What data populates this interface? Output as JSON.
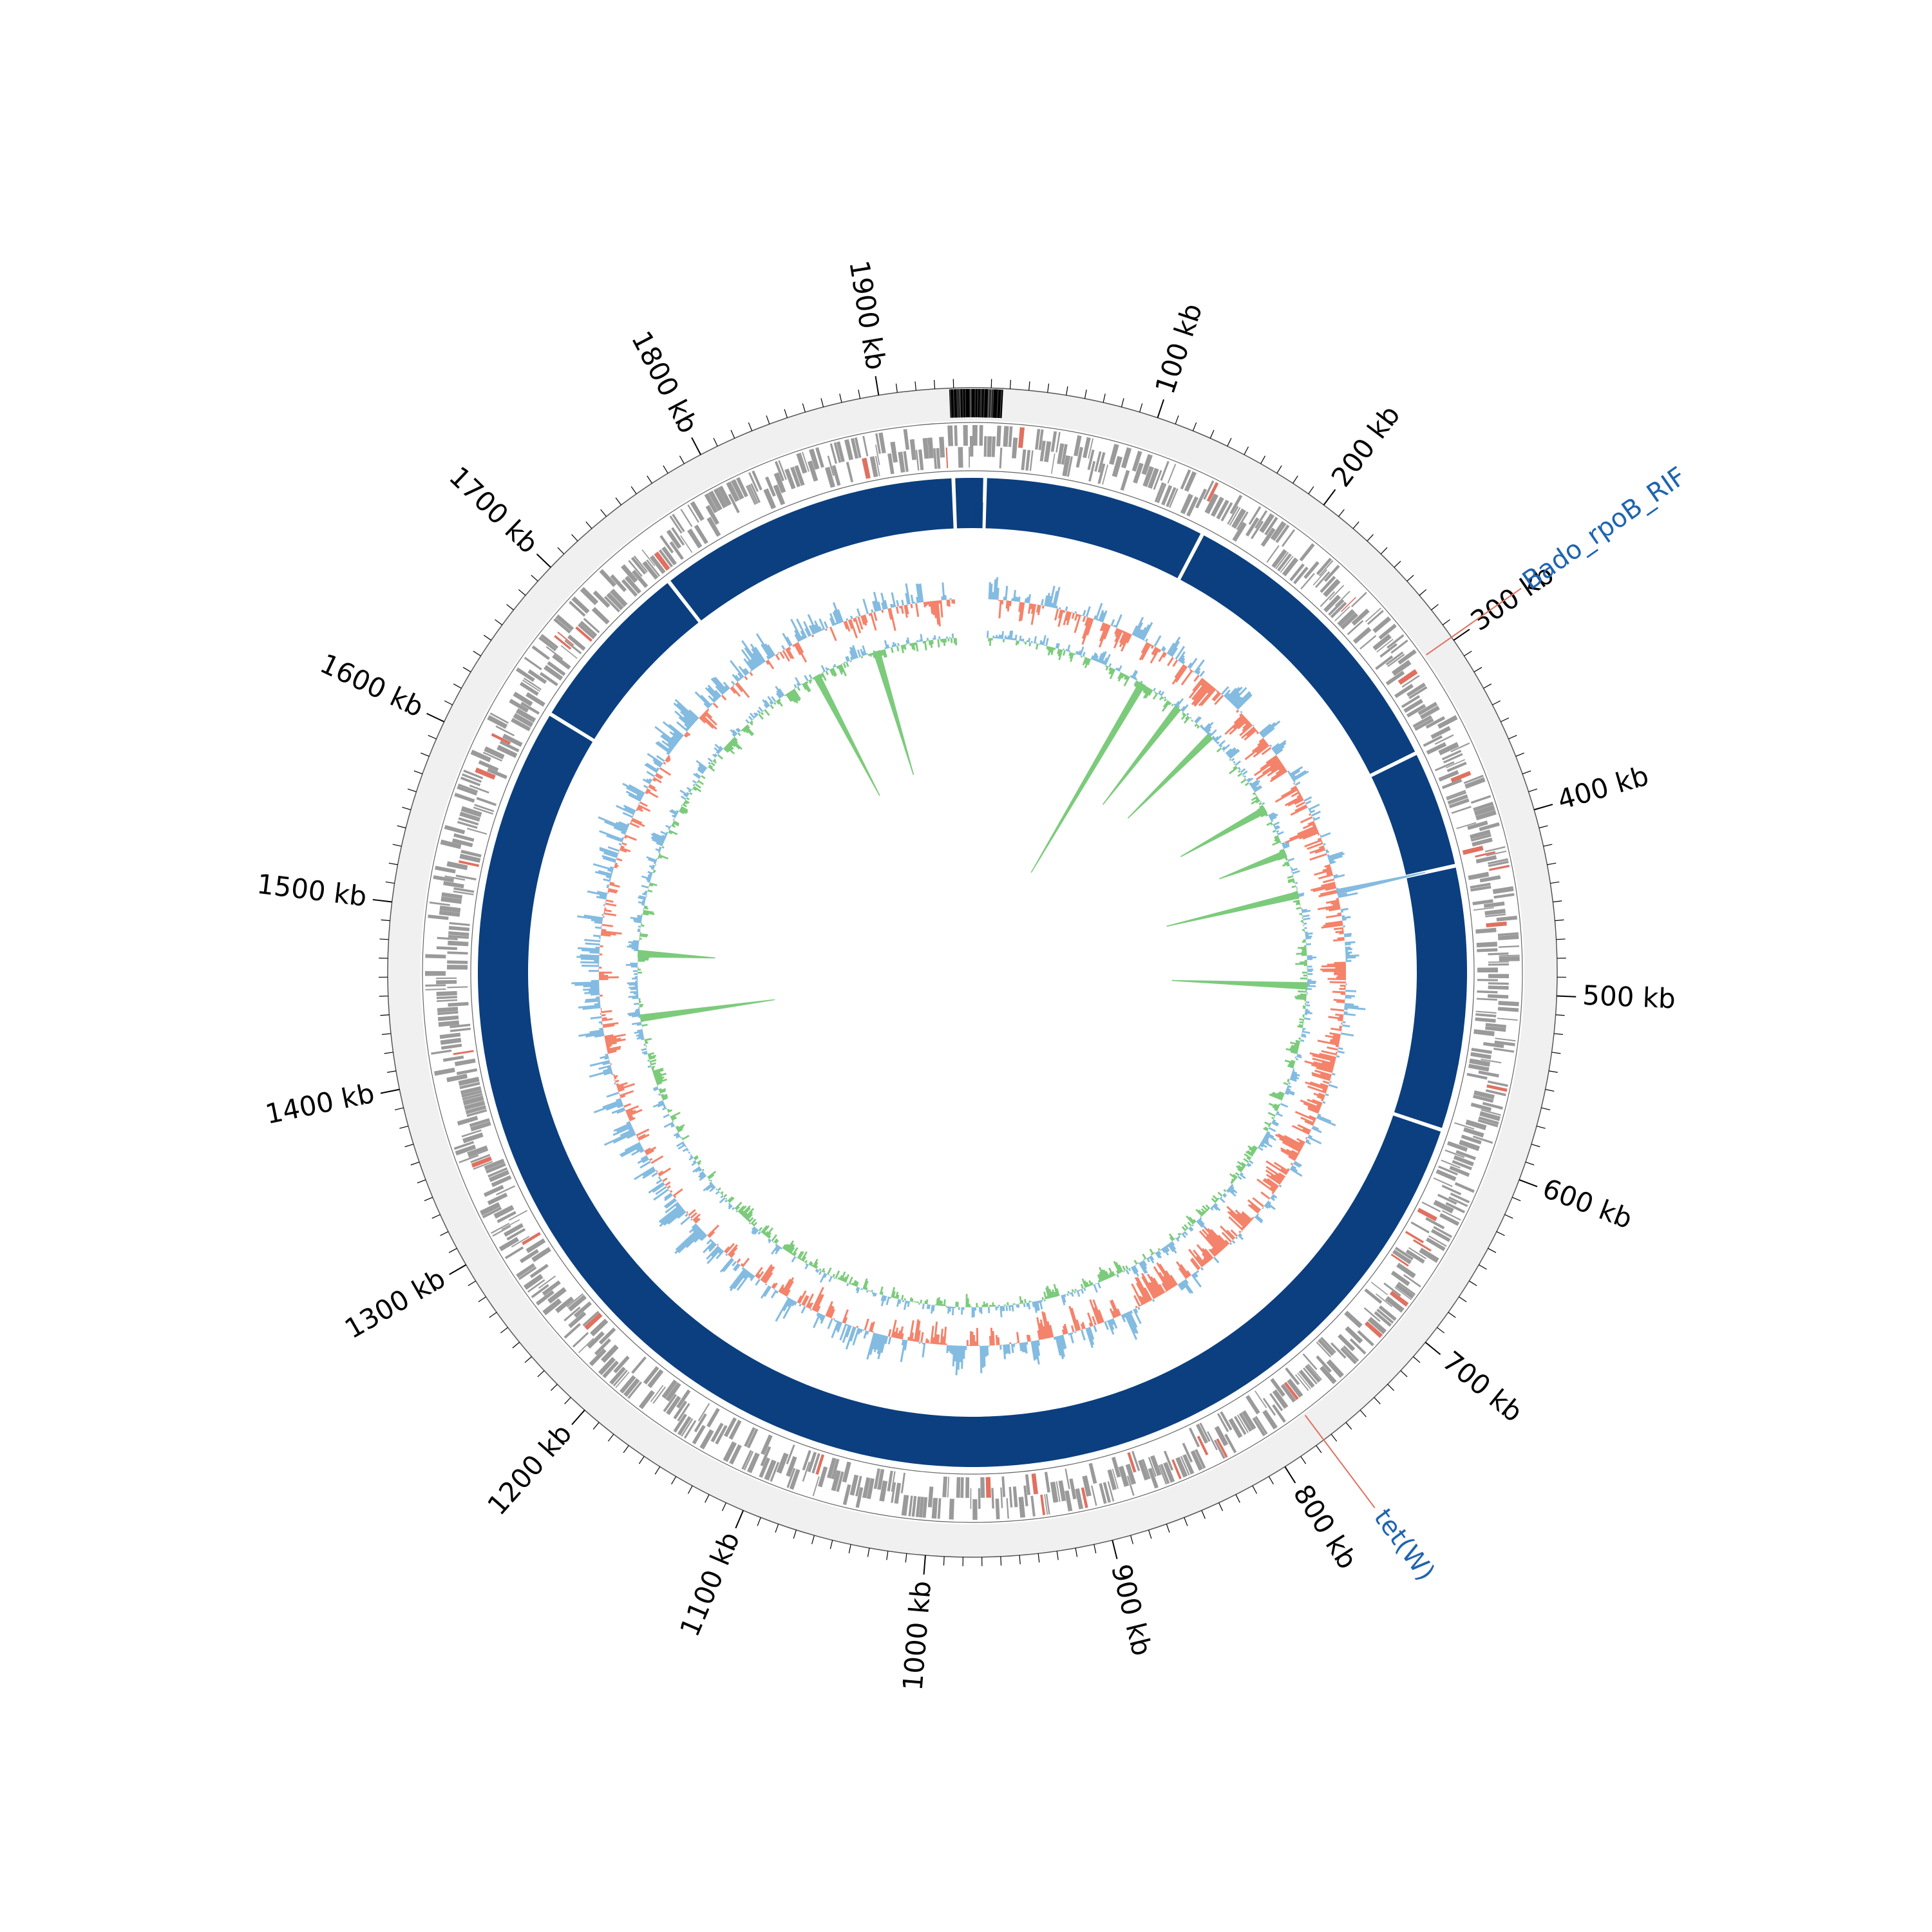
{
  "chart_data": {
    "type": "circular-genome-map",
    "genome_length_kb": 1950,
    "position_labels": [
      {
        "kb": 100,
        "label": "100 kb"
      },
      {
        "kb": 200,
        "label": "200 kb"
      },
      {
        "kb": 300,
        "label": "300 kb"
      },
      {
        "kb": 400,
        "label": "400 kb"
      },
      {
        "kb": 500,
        "label": "500 kb"
      },
      {
        "kb": 600,
        "label": "600 kb"
      },
      {
        "kb": 700,
        "label": "700 kb"
      },
      {
        "kb": 800,
        "label": "800 kb"
      },
      {
        "kb": 900,
        "label": "900 kb"
      },
      {
        "kb": 1000,
        "label": "1000 kb"
      },
      {
        "kb": 1100,
        "label": "1100 kb"
      },
      {
        "kb": 1200,
        "label": "1200 kb"
      },
      {
        "kb": 1300,
        "label": "1300 kb"
      },
      {
        "kb": 1400,
        "label": "1400 kb"
      },
      {
        "kb": 1500,
        "label": "1500 kb"
      },
      {
        "kb": 1600,
        "label": "1600 kb"
      },
      {
        "kb": 1700,
        "label": "1700 kb"
      },
      {
        "kb": 1800,
        "label": "1800 kb"
      },
      {
        "kb": 1900,
        "label": "1900 kb"
      }
    ],
    "annotations": [
      {
        "label": "Bado_rpoB_RIF",
        "kb": 298
      },
      {
        "label": "tet(W)",
        "kb": 775
      }
    ],
    "contig_gaps_kb": [
      8,
      150,
      345,
      420,
      588,
      1633,
      1745,
      1938
    ],
    "colors": {
      "background_ring": "#f0f0f0",
      "gene_features": "#9a9a9a",
      "resistance_features": "#e07060",
      "contig_blocks": "#0b3f7f",
      "gc_content_low": "#f4836b",
      "gc_content_high": "#84bbe0",
      "gc_skew_positive": "#84bbe0",
      "gc_skew_negative": "#7ccb7c",
      "annotation_text": "#1f64b0",
      "annotation_line": "#e07060"
    }
  }
}
